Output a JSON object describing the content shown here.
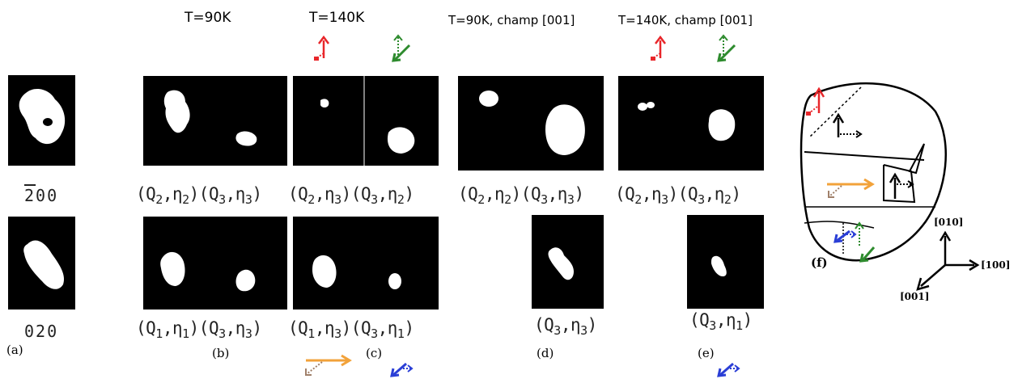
{
  "headers": {
    "b": "T=90K",
    "c": "T=140K",
    "d": "T=90K, champ [001]",
    "e": "T=140K, champ [001]"
  },
  "reflections": {
    "r200": {
      "bar": "2",
      "rest": "00"
    },
    "r020": "020"
  },
  "captions": {
    "a": "(a)",
    "b": "(b)",
    "c": "(c)",
    "d": "(d)",
    "e": "(e)",
    "f": "(f)"
  },
  "labels": {
    "b_top": [
      {
        "q": "2",
        "n": "2"
      },
      {
        "q": "3",
        "n": "3"
      }
    ],
    "c_top": [
      {
        "q": "2",
        "n": "3"
      },
      {
        "q": "3",
        "n": "2"
      }
    ],
    "b_bot": [
      {
        "q": "1",
        "n": "1"
      },
      {
        "q": "3",
        "n": "3"
      }
    ],
    "c_bot": [
      {
        "q": "1",
        "n": "3"
      },
      {
        "q": "3",
        "n": "1"
      }
    ],
    "d_top": [
      {
        "q": "2",
        "n": "2"
      },
      {
        "q": "3",
        "n": "3"
      }
    ],
    "e_top": [
      {
        "q": "2",
        "n": "3"
      },
      {
        "q": "3",
        "n": "2"
      }
    ],
    "d_bot": [
      {
        "q": "3",
        "n": "3"
      }
    ],
    "e_bot": [
      {
        "q": "3",
        "n": "1"
      }
    ]
  },
  "axes": {
    "y": "[010]",
    "x": "[100]",
    "z": "[001]"
  },
  "colors": {
    "red": "#e8262a",
    "green": "#2e8b2e",
    "orange": "#f2a23a",
    "blue": "#2b3fd6"
  },
  "icons": [
    "domain-red-arrow-icon",
    "domain-green-arrow-icon",
    "domain-orange-arrow-icon",
    "domain-blue-arrow-icon"
  ]
}
